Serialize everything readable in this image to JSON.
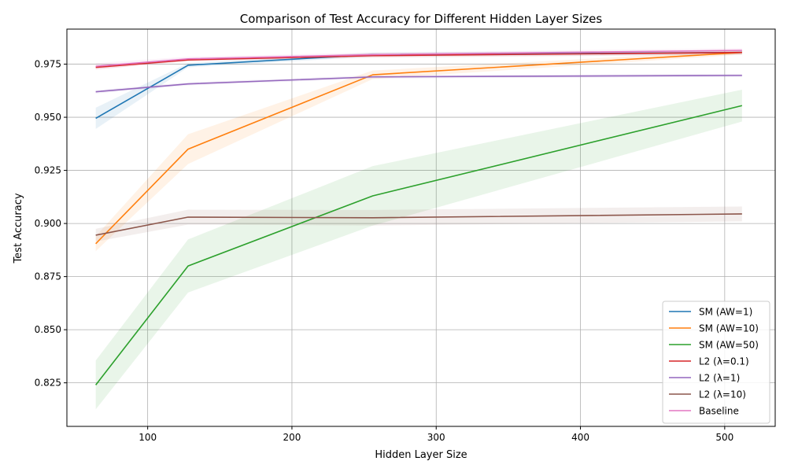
{
  "chart_data": {
    "type": "line",
    "title": "Comparison of Test Accuracy for Different Hidden Layer Sizes",
    "xlabel": "Hidden Layer Size",
    "ylabel": "Test Accuracy",
    "xlim": [
      44,
      535
    ],
    "ylim": [
      0.8045,
      0.9915
    ],
    "xticks": [
      100,
      200,
      300,
      400,
      500
    ],
    "xtick_labels": [
      "100",
      "200",
      "300",
      "400",
      "500"
    ],
    "yticks": [
      0.825,
      0.85,
      0.875,
      0.9,
      0.925,
      0.95,
      0.975
    ],
    "ytick_labels": [
      "0.825",
      "0.850",
      "0.875",
      "0.900",
      "0.925",
      "0.950",
      "0.975"
    ],
    "grid": true,
    "legend_position": "lower-right",
    "x": [
      64,
      128,
      256,
      512
    ],
    "series": [
      {
        "name": "SM (AW=1)",
        "color": "#1f77b4",
        "values": [
          0.9495,
          0.9745,
          0.9795,
          0.9805
        ],
        "lower": [
          0.9445,
          0.9735,
          0.9785,
          0.9795
        ],
        "upper": [
          0.9545,
          0.9755,
          0.9805,
          0.9815
        ]
      },
      {
        "name": "SM (AW=10)",
        "color": "#ff7f0e",
        "values": [
          0.8905,
          0.935,
          0.97,
          0.9805
        ],
        "lower": [
          0.887,
          0.928,
          0.968,
          0.9795
        ],
        "upper": [
          0.894,
          0.942,
          0.972,
          0.9815
        ]
      },
      {
        "name": "SM (AW=50)",
        "color": "#2ca02c",
        "values": [
          0.824,
          0.88,
          0.913,
          0.9555
        ],
        "lower": [
          0.8125,
          0.8675,
          0.899,
          0.948
        ],
        "upper": [
          0.8355,
          0.8925,
          0.927,
          0.963
        ]
      },
      {
        "name": "L2 (λ=0.1)",
        "color": "#d62728",
        "values": [
          0.9735,
          0.977,
          0.979,
          0.9805
        ],
        "lower": [
          0.9725,
          0.9765,
          0.978,
          0.9795
        ],
        "upper": [
          0.9745,
          0.9775,
          0.98,
          0.9815
        ]
      },
      {
        "name": "L2 (λ=1)",
        "color": "#9467bd",
        "values": [
          0.962,
          0.9657,
          0.969,
          0.9697
        ],
        "lower": [
          0.9612,
          0.965,
          0.9682,
          0.969
        ],
        "upper": [
          0.9628,
          0.9664,
          0.9698,
          0.9704
        ]
      },
      {
        "name": "L2 (λ=10)",
        "color": "#8c564b",
        "values": [
          0.8945,
          0.903,
          0.9027,
          0.9045
        ],
        "lower": [
          0.8915,
          0.8995,
          0.899,
          0.901
        ],
        "upper": [
          0.8975,
          0.9065,
          0.9064,
          0.908
        ]
      },
      {
        "name": "Baseline",
        "color": "#e377c2",
        "values": [
          0.974,
          0.9775,
          0.9795,
          0.9815
        ],
        "lower": [
          0.9725,
          0.9765,
          0.9785,
          0.9805
        ],
        "upper": [
          0.9755,
          0.9785,
          0.9805,
          0.9825
        ]
      }
    ]
  }
}
